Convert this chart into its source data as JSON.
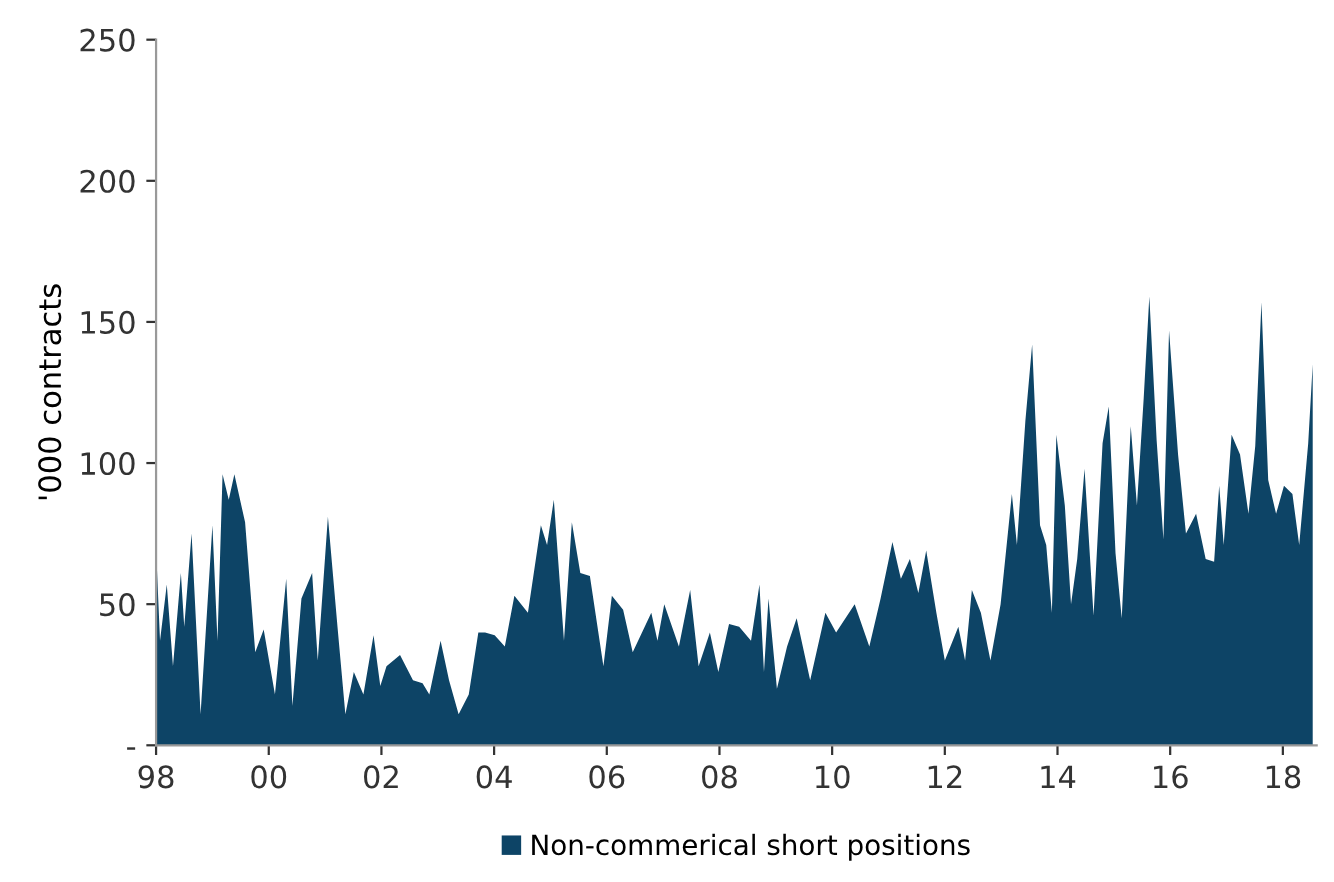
{
  "chart_data": {
    "type": "area",
    "ylabel": "'000 contracts",
    "x": [
      1998.01,
      1998.07,
      1998.19,
      1998.3,
      1998.44,
      1998.5,
      1998.63,
      1998.79,
      1999.0,
      1999.09,
      1999.18,
      1999.29,
      1999.39,
      1999.58,
      1999.76,
      1999.91,
      2000.11,
      2000.31,
      2000.42,
      2000.58,
      2000.77,
      2000.87,
      2001.05,
      2001.22,
      2001.36,
      2001.51,
      2001.68,
      2001.86,
      2001.98,
      2002.09,
      2002.33,
      2002.56,
      2002.73,
      2002.85,
      2003.05,
      2003.2,
      2003.37,
      2003.55,
      2003.72,
      2003.84,
      2004.01,
      2004.19,
      2004.36,
      2004.6,
      2004.83,
      2004.94,
      2005.06,
      2005.24,
      2005.38,
      2005.53,
      2005.7,
      2005.94,
      2006.09,
      2006.29,
      2006.46,
      2006.79,
      2006.9,
      2007.02,
      2007.28,
      2007.48,
      2007.63,
      2007.83,
      2007.98,
      2008.17,
      2008.35,
      2008.56,
      2008.71,
      2008.79,
      2008.87,
      2009.02,
      2009.2,
      2009.37,
      2009.61,
      2009.88,
      2010.07,
      2010.4,
      2010.66,
      2010.86,
      2011.07,
      2011.22,
      2011.38,
      2011.53,
      2011.67,
      2011.85,
      2012.0,
      2012.24,
      2012.36,
      2012.48,
      2012.64,
      2012.81,
      2012.99,
      2013.19,
      2013.28,
      2013.43,
      2013.55,
      2013.69,
      2013.8,
      2013.9,
      2013.98,
      2014.13,
      2014.24,
      2014.35,
      2014.48,
      2014.64,
      2014.8,
      2014.91,
      2015.03,
      2015.14,
      2015.3,
      2015.41,
      2015.53,
      2015.63,
      2015.76,
      2015.88,
      2015.98,
      2016.14,
      2016.28,
      2016.46,
      2016.63,
      2016.78,
      2016.87,
      2016.95,
      2017.09,
      2017.24,
      2017.39,
      2017.51,
      2017.62,
      2017.74,
      2017.88,
      2018.02,
      2018.17,
      2018.29,
      2018.45,
      2018.53
    ],
    "series": [
      {
        "name": "Non-commerical short positions",
        "color": "#0d4466",
        "values": [
          65,
          37,
          57,
          28,
          61,
          42,
          75,
          11,
          78,
          37,
          96,
          87,
          96,
          79,
          33,
          41,
          18,
          59,
          14,
          52,
          61,
          30,
          81,
          42,
          11,
          26,
          18,
          39,
          21,
          28,
          32,
          23,
          22,
          18,
          37,
          23,
          11,
          18,
          40,
          40,
          39,
          35,
          53,
          47,
          78,
          71,
          87,
          37,
          79,
          61,
          60,
          28,
          53,
          48,
          33,
          47,
          37,
          50,
          35,
          55,
          28,
          40,
          26,
          43,
          42,
          37,
          57,
          26,
          52,
          20,
          35,
          45,
          23,
          47,
          40,
          50,
          35,
          52,
          72,
          59,
          66,
          54,
          69,
          47,
          30,
          42,
          30,
          55,
          47,
          30,
          50,
          89,
          71,
          115,
          142,
          78,
          71,
          47,
          110,
          85,
          50,
          66,
          98,
          46,
          107,
          120,
          68,
          45,
          113,
          85,
          123,
          159,
          108,
          73,
          147,
          103,
          75,
          82,
          66,
          65,
          92,
          71,
          110,
          103,
          82,
          106,
          157,
          94,
          82,
          92,
          89,
          71,
          107,
          135
        ]
      }
    ],
    "xlim": [
      1998,
      2018.6
    ],
    "xticks": [
      {
        "value": 1998,
        "label": "98"
      },
      {
        "value": 2000,
        "label": "00"
      },
      {
        "value": 2002,
        "label": "02"
      },
      {
        "value": 2004,
        "label": "04"
      },
      {
        "value": 2006,
        "label": "06"
      },
      {
        "value": 2008,
        "label": "08"
      },
      {
        "value": 2010,
        "label": "10"
      },
      {
        "value": 2012,
        "label": "12"
      },
      {
        "value": 2014,
        "label": "14"
      },
      {
        "value": 2016,
        "label": "16"
      },
      {
        "value": 2018,
        "label": "18"
      }
    ],
    "ylim": [
      0,
      250
    ],
    "yticks": [
      {
        "value": 0,
        "label": "-"
      },
      50,
      100,
      150,
      200,
      250
    ],
    "legend": "bottom",
    "grid": false
  }
}
